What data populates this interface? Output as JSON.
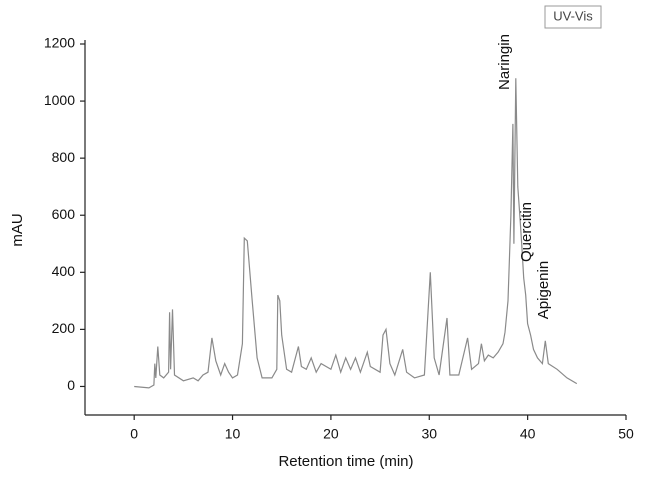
{
  "chart_data": {
    "type": "line",
    "legend_label": "UV-Vis",
    "xlabel": "Retention time (min)",
    "ylabel": "mAU",
    "annotations": [
      "Naringin",
      "Quercitin",
      "Apigenin"
    ],
    "color": "#8a8a8a",
    "xlim": [
      -5,
      50
    ],
    "xticks": [
      0,
      10,
      20,
      30,
      40,
      50
    ],
    "ylim": [
      -100,
      1200
    ],
    "yticks": [
      0,
      200,
      400,
      600,
      800,
      1000,
      1200
    ],
    "x": [
      0,
      1.5,
      2,
      2.1,
      2.2,
      2.4,
      2.6,
      3,
      3.5,
      3.6,
      3.7,
      3.9,
      4.1,
      5,
      6,
      6.5,
      7,
      7.5,
      7.9,
      8.3,
      8.8,
      9.2,
      9.6,
      10,
      10.5,
      11,
      11.2,
      11.5,
      12,
      12.5,
      13,
      14,
      14.5,
      14.6,
      14.8,
      15,
      15.5,
      16,
      16.7,
      17,
      17.5,
      18,
      18.5,
      19,
      20,
      20.5,
      21,
      21.5,
      22,
      22.5,
      23,
      23.7,
      24,
      25,
      25.3,
      25.6,
      26,
      26.5,
      27.3,
      27.7,
      28.5,
      29.5,
      30.1,
      30.5,
      31,
      31.8,
      32.1,
      33,
      33.9,
      34.3,
      35,
      35.3,
      35.6,
      36,
      36.5,
      37,
      37.5,
      37.7,
      38,
      38.3,
      38.5,
      38.6,
      38.8,
      39,
      39.2,
      39.4,
      39.6,
      39.8,
      40,
      40.3,
      40.6,
      41,
      41.5,
      41.8,
      42.1,
      43,
      44,
      45
    ],
    "values": [
      0,
      -5,
      5,
      80,
      30,
      140,
      40,
      30,
      50,
      260,
      60,
      270,
      40,
      20,
      30,
      20,
      40,
      50,
      170,
      90,
      40,
      80,
      50,
      30,
      40,
      150,
      520,
      510,
      300,
      100,
      30,
      30,
      60,
      320,
      300,
      180,
      60,
      50,
      140,
      70,
      60,
      100,
      50,
      80,
      60,
      110,
      50,
      100,
      60,
      100,
      50,
      120,
      70,
      50,
      180,
      200,
      80,
      40,
      130,
      50,
      30,
      40,
      400,
      100,
      40,
      240,
      40,
      40,
      170,
      60,
      80,
      150,
      90,
      110,
      100,
      120,
      150,
      190,
      300,
      600,
      920,
      500,
      1080,
      700,
      600,
      500,
      380,
      320,
      220,
      180,
      130,
      100,
      80,
      160,
      80,
      60,
      30,
      10
    ]
  }
}
